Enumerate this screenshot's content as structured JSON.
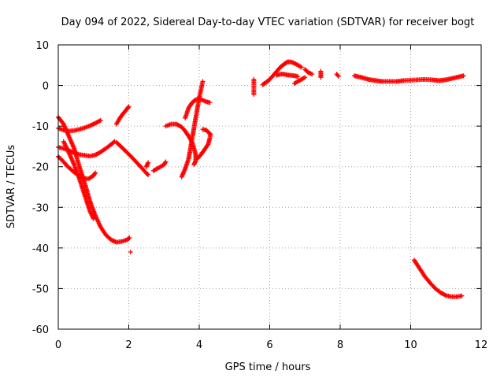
{
  "chart_data": {
    "type": "scatter",
    "title": "Day 094 of 2022, Sidereal Day-to-day VTEC variation (SDTVAR) for receiver bogt",
    "xlabel": "GPS time / hours",
    "ylabel": "SDTVAR / TECUs",
    "xlim": [
      0,
      12
    ],
    "ylim": [
      -60,
      10
    ],
    "xticks": [
      0,
      2,
      4,
      6,
      8,
      10,
      12
    ],
    "yticks": [
      10,
      0,
      -10,
      -20,
      -30,
      -40,
      -50,
      -60
    ],
    "grid": true,
    "marker": "plus",
    "color": "#ff0000",
    "series": [
      {
        "name": "trace-1",
        "points": [
          [
            0.0,
            -7.8
          ],
          [
            0.15,
            -9.5
          ],
          [
            0.3,
            -12.5
          ],
          [
            0.45,
            -15.5
          ],
          [
            0.6,
            -20.0
          ],
          [
            0.75,
            -24.0
          ],
          [
            0.9,
            -28.5
          ],
          [
            1.05,
            -32.0
          ],
          [
            1.2,
            -34.8
          ],
          [
            1.35,
            -36.8
          ],
          [
            1.5,
            -38.0
          ],
          [
            1.65,
            -38.6
          ],
          [
            1.8,
            -38.4
          ],
          [
            1.95,
            -38.0
          ],
          [
            2.02,
            -37.5
          ]
        ]
      },
      {
        "name": "trace-2",
        "points": [
          [
            0.0,
            -10.5
          ],
          [
            0.15,
            -11.0
          ],
          [
            0.3,
            -11.2
          ],
          [
            0.45,
            -11.1
          ],
          [
            0.6,
            -10.8
          ],
          [
            0.75,
            -10.4
          ],
          [
            0.9,
            -9.9
          ],
          [
            1.05,
            -9.3
          ],
          [
            1.2,
            -8.6
          ]
        ]
      },
      {
        "name": "trace-3",
        "points": [
          [
            0.0,
            -15.2
          ],
          [
            0.15,
            -15.5
          ],
          [
            0.3,
            -16.0
          ],
          [
            0.45,
            -16.6
          ],
          [
            0.6,
            -17.0
          ],
          [
            0.75,
            -17.2
          ],
          [
            0.9,
            -17.4
          ],
          [
            1.05,
            -17.1
          ],
          [
            1.2,
            -16.4
          ],
          [
            1.35,
            -15.5
          ],
          [
            1.5,
            -14.5
          ],
          [
            1.6,
            -13.8
          ]
        ]
      },
      {
        "name": "trace-4",
        "points": [
          [
            0.0,
            -17.5
          ],
          [
            0.12,
            -18.5
          ],
          [
            0.25,
            -19.8
          ],
          [
            0.4,
            -21.0
          ],
          [
            0.55,
            -22.0
          ],
          [
            0.7,
            -22.8
          ],
          [
            0.85,
            -23.0
          ],
          [
            1.0,
            -22.2
          ],
          [
            1.05,
            -21.5
          ]
        ]
      },
      {
        "name": "trace-5",
        "points": [
          [
            0.15,
            -13.8
          ],
          [
            0.3,
            -16.5
          ],
          [
            0.45,
            -19.5
          ],
          [
            0.6,
            -23.0
          ],
          [
            0.75,
            -27.0
          ],
          [
            0.9,
            -31.0
          ],
          [
            1.0,
            -32.8
          ]
        ]
      },
      {
        "name": "trace-6",
        "points": [
          [
            1.65,
            -14.0
          ],
          [
            1.8,
            -15.2
          ],
          [
            1.95,
            -16.5
          ],
          [
            2.1,
            -17.8
          ],
          [
            2.25,
            -19.2
          ],
          [
            2.4,
            -20.6
          ],
          [
            2.5,
            -21.6
          ],
          [
            2.55,
            -22.0
          ]
        ]
      },
      {
        "name": "trace-7",
        "points": [
          [
            1.65,
            -9.5
          ],
          [
            1.75,
            -8.0
          ],
          [
            1.85,
            -6.8
          ],
          [
            1.95,
            -5.8
          ],
          [
            2.0,
            -5.2
          ]
        ]
      },
      {
        "name": "trace-8",
        "points": [
          [
            2.5,
            -20.0
          ],
          [
            2.55,
            -19.0
          ]
        ]
      },
      {
        "name": "trace-9",
        "points": [
          [
            2.7,
            -21.0
          ],
          [
            2.8,
            -20.5
          ],
          [
            2.9,
            -20.0
          ],
          [
            3.0,
            -19.5
          ],
          [
            3.05,
            -18.8
          ]
        ]
      },
      {
        "name": "trace-10",
        "points": [
          [
            3.05,
            -10.0
          ],
          [
            3.2,
            -9.5
          ],
          [
            3.35,
            -9.5
          ],
          [
            3.5,
            -10.2
          ],
          [
            3.6,
            -11.2
          ],
          [
            3.7,
            -12.5
          ],
          [
            3.8,
            -14.0
          ],
          [
            3.85,
            -15.5
          ],
          [
            3.9,
            -17.0
          ],
          [
            3.9,
            -18.5
          ],
          [
            3.85,
            -19.5
          ]
        ]
      },
      {
        "name": "trace-11",
        "points": [
          [
            3.5,
            -22.5
          ],
          [
            3.6,
            -20.5
          ],
          [
            3.7,
            -18.0
          ],
          [
            3.75,
            -15.5
          ],
          [
            3.8,
            -13.0
          ],
          [
            3.85,
            -10.5
          ],
          [
            3.9,
            -8.0
          ],
          [
            3.95,
            -5.5
          ],
          [
            4.0,
            -3.0
          ],
          [
            4.05,
            -1.0
          ],
          [
            4.1,
            1.0
          ]
        ]
      },
      {
        "name": "trace-12",
        "points": [
          [
            3.6,
            -8.0
          ],
          [
            3.7,
            -5.5
          ],
          [
            3.8,
            -4.2
          ],
          [
            3.9,
            -3.5
          ],
          [
            4.0,
            -3.3
          ],
          [
            4.1,
            -3.6
          ],
          [
            4.2,
            -4.0
          ],
          [
            4.3,
            -4.2
          ]
        ]
      },
      {
        "name": "trace-13",
        "points": [
          [
            3.95,
            -18.0
          ],
          [
            4.05,
            -17.0
          ],
          [
            4.15,
            -15.8
          ],
          [
            4.25,
            -14.5
          ],
          [
            4.3,
            -13.0
          ],
          [
            4.32,
            -12.0
          ],
          [
            4.2,
            -11.0
          ],
          [
            4.1,
            -10.8
          ]
        ]
      },
      {
        "name": "trace-14",
        "points": [
          [
            5.55,
            1.5
          ],
          [
            5.55,
            -2.2
          ]
        ]
      },
      {
        "name": "trace-15",
        "points": [
          [
            5.8,
            0.2
          ],
          [
            5.9,
            0.8
          ],
          [
            6.0,
            1.5
          ],
          [
            6.1,
            2.5
          ],
          [
            6.2,
            3.5
          ],
          [
            6.3,
            4.5
          ],
          [
            6.4,
            5.2
          ],
          [
            6.5,
            5.8
          ],
          [
            6.6,
            5.8
          ],
          [
            6.7,
            5.5
          ],
          [
            6.8,
            5.0
          ],
          [
            6.9,
            4.5
          ]
        ]
      },
      {
        "name": "trace-16",
        "points": [
          [
            6.2,
            2.5
          ],
          [
            6.3,
            2.8
          ],
          [
            6.4,
            2.8
          ],
          [
            6.5,
            2.6
          ],
          [
            6.6,
            2.5
          ],
          [
            6.7,
            2.4
          ],
          [
            6.8,
            2.2
          ]
        ]
      },
      {
        "name": "trace-17",
        "points": [
          [
            6.7,
            0.5
          ],
          [
            6.8,
            1.0
          ],
          [
            6.9,
            1.5
          ],
          [
            7.0,
            2.0
          ]
        ]
      },
      {
        "name": "trace-18",
        "points": [
          [
            7.0,
            4.0
          ],
          [
            7.05,
            3.5
          ],
          [
            7.1,
            3.2
          ],
          [
            7.2,
            2.8
          ]
        ]
      },
      {
        "name": "trace-19",
        "points": [
          [
            7.45,
            3.5
          ],
          [
            7.45,
            2.0
          ]
        ]
      },
      {
        "name": "trace-20",
        "points": [
          [
            7.9,
            2.8
          ],
          [
            7.95,
            2.3
          ]
        ]
      },
      {
        "name": "trace-21",
        "points": [
          [
            8.4,
            2.4
          ],
          [
            8.6,
            2.0
          ],
          [
            8.8,
            1.5
          ],
          [
            9.0,
            1.2
          ],
          [
            9.2,
            1.0
          ],
          [
            9.4,
            1.0
          ],
          [
            9.6,
            1.0
          ],
          [
            9.8,
            1.2
          ],
          [
            10.0,
            1.3
          ],
          [
            10.2,
            1.4
          ],
          [
            10.4,
            1.5
          ],
          [
            10.6,
            1.4
          ],
          [
            10.8,
            1.2
          ],
          [
            11.0,
            1.4
          ],
          [
            11.2,
            1.8
          ],
          [
            11.4,
            2.2
          ],
          [
            11.5,
            2.4
          ]
        ]
      },
      {
        "name": "trace-22",
        "points": [
          [
            10.1,
            -43.0
          ],
          [
            10.25,
            -45.0
          ],
          [
            10.4,
            -47.0
          ],
          [
            10.55,
            -48.6
          ],
          [
            10.7,
            -50.0
          ],
          [
            10.85,
            -51.0
          ],
          [
            11.0,
            -51.7
          ],
          [
            11.15,
            -52.0
          ],
          [
            11.3,
            -52.0
          ],
          [
            11.45,
            -51.8
          ]
        ]
      },
      {
        "name": "isolated",
        "points": [
          [
            2.05,
            -41.0
          ]
        ]
      }
    ]
  }
}
